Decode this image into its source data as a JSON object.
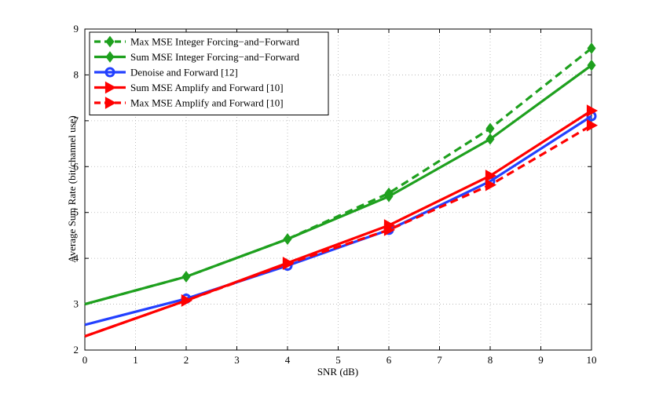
{
  "chart_data": {
    "type": "line",
    "title": "",
    "xlabel": "SNR (dB)",
    "ylabel": "Average Sum Rate (bit/channel use)",
    "xlim": [
      0,
      10
    ],
    "ylim": [
      2,
      9
    ],
    "xticks": [
      "0",
      "1",
      "2",
      "3",
      "4",
      "5",
      "6",
      "7",
      "8",
      "9",
      "10"
    ],
    "yticks": [
      "2",
      "3",
      "4",
      "5",
      "6",
      "7",
      "8",
      "9"
    ],
    "grid": true,
    "legend_position": "top-left",
    "series": [
      {
        "name": "Max MSE Integer Forcing−and−Forward",
        "color": "#1ea01e",
        "dashed": true,
        "marker": "diamond",
        "x": [
          0,
          2,
          4,
          6,
          8,
          10
        ],
        "y": [
          3.0,
          3.6,
          4.42,
          5.42,
          6.83,
          8.58
        ]
      },
      {
        "name": "Sum MSE Integer Forcing−and−Forward",
        "color": "#1ea01e",
        "dashed": false,
        "marker": "diamond",
        "x": [
          0,
          2,
          4,
          6,
          8,
          10
        ],
        "y": [
          3.0,
          3.6,
          4.42,
          5.35,
          6.6,
          8.21
        ]
      },
      {
        "name": "Denoise and Forward [12]",
        "color": "#2340ff",
        "dashed": false,
        "marker": "circle",
        "x": [
          0,
          2,
          4,
          6,
          8,
          10
        ],
        "y": [
          2.55,
          3.12,
          3.84,
          4.62,
          5.68,
          7.1
        ]
      },
      {
        "name": "Sum MSE Amplify and Forward [10]",
        "color": "#ff0000",
        "dashed": false,
        "marker": "triangle-right",
        "x": [
          0,
          2,
          4,
          6,
          8,
          10
        ],
        "y": [
          2.3,
          3.08,
          3.9,
          4.72,
          5.8,
          7.22
        ]
      },
      {
        "name": "Max MSE Amplify and Forward [10]",
        "color": "#ff0000",
        "dashed": true,
        "marker": "triangle-right",
        "x": [
          0,
          2,
          4,
          6,
          8,
          10
        ],
        "y": [
          2.3,
          3.08,
          3.88,
          4.62,
          5.6,
          6.9
        ]
      }
    ]
  }
}
